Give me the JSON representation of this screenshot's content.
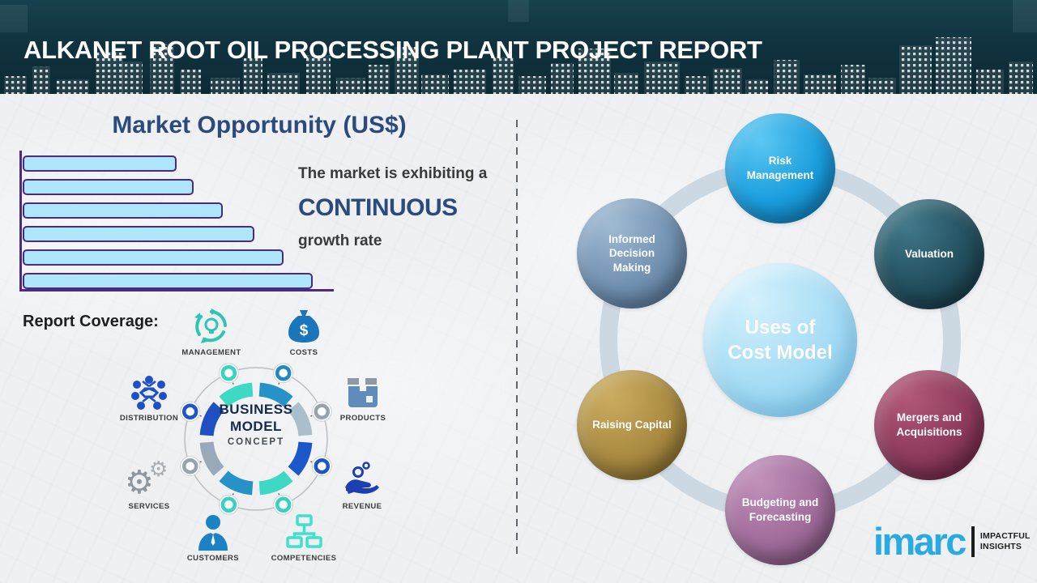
{
  "header": {
    "title": "ALKANET ROOT OIL PROCESSING PLANT PROJECT REPORT"
  },
  "market_opportunity": {
    "title": "Market Opportunity (US$)",
    "statement_prefix": "The market is exhibiting a",
    "statement_highlight": "CONTINUOUS",
    "statement_suffix": "growth rate"
  },
  "chart_data": {
    "type": "bar",
    "orientation": "horizontal",
    "title": "Market Opportunity (US$)",
    "values_relative_pct": [
      53,
      59,
      69,
      80,
      90,
      100
    ],
    "axis_tick_labels_shown": false,
    "data_labels_shown": false,
    "grid": false,
    "bar_fill": "#aee6fb",
    "bar_border": "#4b2a84",
    "axis_color": "#4b2a84",
    "meaning": "continuous growth rate"
  },
  "report_coverage": {
    "label": "Report Coverage:",
    "diagram": {
      "line1": "BUSINESS",
      "line2": "MODEL",
      "line3": "CONCEPT"
    },
    "items": [
      {
        "label": "MANAGEMENT",
        "icon": "recycle-bulb-icon",
        "color": "#2fc5b1"
      },
      {
        "label": "COSTS",
        "icon": "money-bag-icon",
        "color": "#1b75bb"
      },
      {
        "label": "DISTRIBUTION",
        "icon": "network-icon",
        "color": "#1d50c4"
      },
      {
        "label": "PRODUCTS",
        "icon": "product-box-icon",
        "color": "#5f8cba"
      },
      {
        "label": "SERVICES",
        "icon": "gears-icon",
        "color": "#8f979e"
      },
      {
        "label": "REVENUE",
        "icon": "hand-coins-icon",
        "color": "#1d3fb0"
      },
      {
        "label": "CUSTOMERS",
        "icon": "customer-person-icon",
        "color": "#1b82c4"
      },
      {
        "label": "COMPETENCIES",
        "icon": "org-chart-icon",
        "color": "#40e0cf"
      }
    ]
  },
  "cost_model": {
    "center_line1": "Uses of",
    "center_line2": "Cost Model",
    "center_color": "#a5dcf5",
    "items": [
      {
        "label": "Risk Management",
        "color": "#1a9ede"
      },
      {
        "label": "Valuation",
        "color": "#224f5e"
      },
      {
        "label": "Mergers and Acquisitions",
        "color": "#8d3a5c"
      },
      {
        "label": "Budgeting and Forecasting",
        "color": "#a06c9b"
      },
      {
        "label": "Raising Capital",
        "color": "#a98a41"
      },
      {
        "label": "Informed Decision Making",
        "color": "#7191b1"
      }
    ]
  },
  "branding": {
    "logo_text": "imarc",
    "logo_color": "#29abe2",
    "tagline_line1": "IMPACTFUL",
    "tagline_line2": "INSIGHTS"
  }
}
